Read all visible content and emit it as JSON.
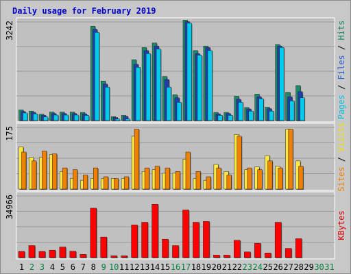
{
  "chart_data": {
    "type": "bar",
    "title": "Daily usage for February 2019",
    "days": [
      "1",
      "2",
      "3",
      "4",
      "5",
      "6",
      "7",
      "8",
      "9",
      "10",
      "11",
      "12",
      "13",
      "14",
      "15",
      "16",
      "17",
      "18",
      "19",
      "20",
      "21",
      "22",
      "23",
      "24",
      "25",
      "26",
      "27",
      "28",
      "29",
      "30",
      "31"
    ],
    "weekend_days": [
      "2",
      "3",
      "9",
      "10",
      "16",
      "17",
      "23",
      "24",
      "30",
      "31"
    ],
    "panels": [
      {
        "name": "hits",
        "max_label": "3242",
        "ylim": [
          0,
          3242
        ],
        "ylabel_parts": [
          {
            "text": "Pages",
            "color": "#00c0e0"
          },
          {
            "text": " / ",
            "color": "#000000"
          },
          {
            "text": "Files",
            "color": "#2a60d6"
          },
          {
            "text": " / ",
            "color": "#000000"
          },
          {
            "text": "Hits",
            "color": "#1a8a60"
          }
        ],
        "series": [
          {
            "name": "Hits",
            "color": "#1a8a6a",
            "values": [
              350,
              310,
              210,
              280,
              280,
              280,
              270,
              3100,
              1300,
              130,
              170,
              2000,
              2400,
              2550,
              1450,
              850,
              3300,
              2300,
              2450,
              270,
              270,
              800,
              430,
              870,
              440,
              2500,
              930,
              1150,
              0,
              0,
              0
            ]
          },
          {
            "name": "Files",
            "color": "#1f3fb0",
            "values": [
              300,
              270,
              170,
              230,
              230,
              230,
              220,
              3000,
              1200,
              100,
              140,
              1850,
              2300,
              2450,
              1350,
              750,
              3250,
              2200,
              2400,
              220,
              230,
              700,
              380,
              780,
              390,
              2450,
              780,
              950,
              0,
              0,
              0
            ]
          },
          {
            "name": "Pages",
            "color": "#00ccf0",
            "values": [
              250,
              220,
              120,
              180,
              180,
              180,
              170,
              2900,
              1100,
              50,
              50,
              1750,
              2200,
              2350,
              1100,
              600,
              3200,
              2150,
              2300,
              170,
              170,
              600,
              310,
              720,
              310,
              2400,
              650,
              750,
              0,
              0,
              0
            ]
          }
        ]
      },
      {
        "name": "visits",
        "max_label": "175",
        "ylim": [
          0,
          175
        ],
        "ylabel_parts": [
          {
            "text": "Sites",
            "color": "#f08000"
          },
          {
            "text": " / ",
            "color": "#000000"
          },
          {
            "text": "Visits",
            "color": "#f0e000"
          }
        ],
        "series": [
          {
            "name": "Visits",
            "color": "#ffe840",
            "values": [
              120,
              90,
              90,
              98,
              50,
              30,
              25,
              30,
              30,
              30,
              30,
              150,
              50,
              55,
              45,
              45,
              85,
              30,
              25,
              70,
              50,
              155,
              55,
              63,
              95,
              65,
              170,
              80,
              0,
              0,
              0
            ]
          },
          {
            "name": "Sites",
            "color": "#f08000",
            "values": [
              105,
              80,
              108,
              100,
              60,
              55,
              40,
              60,
              35,
              30,
              35,
              170,
              60,
              65,
              60,
              50,
              105,
              50,
              35,
              60,
              40,
              150,
              60,
              55,
              80,
              60,
              170,
              65,
              0,
              0,
              0
            ]
          }
        ]
      },
      {
        "name": "kbytes",
        "max_label": "34966",
        "ylim": [
          0,
          34966
        ],
        "ylabel_parts": [
          {
            "text": "KBytes",
            "color": "#e00000"
          }
        ],
        "series": [
          {
            "name": "KBytes",
            "color": "#ff0000",
            "values": [
              3500,
              6800,
              3500,
              4200,
              6000,
              3600,
              1800,
              28000,
              11600,
              1000,
              1000,
              18500,
              20000,
              30200,
              10400,
              6800,
              27000,
              20000,
              20500,
              1400,
              1400,
              9800,
              3200,
              8100,
              2600,
              20000,
              5200,
              10700,
              0,
              0,
              0
            ]
          }
        ]
      }
    ]
  }
}
